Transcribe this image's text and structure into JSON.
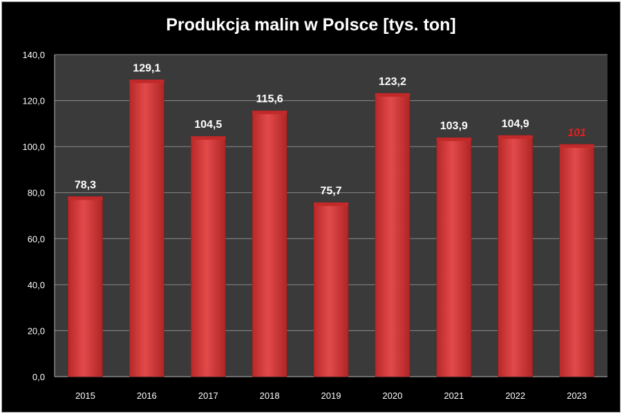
{
  "chart_data": {
    "type": "bar",
    "title": "Produkcja malin w Polsce [tys. ton]",
    "categories": [
      "2015",
      "2016",
      "2017",
      "2018",
      "2019",
      "2020",
      "2021",
      "2022",
      "2023"
    ],
    "values": [
      78.3,
      129.1,
      104.5,
      115.6,
      75.7,
      123.2,
      103.9,
      104.9,
      101
    ],
    "data_labels": [
      "78,3",
      "129,1",
      "104,5",
      "115,6",
      "75,7",
      "123,2",
      "103,9",
      "104,9",
      "101"
    ],
    "highlighted_index": 8,
    "y_ticks": [
      "0,0",
      "20,0",
      "40,0",
      "60,0",
      "80,0",
      "100,0",
      "120,0",
      "140,0"
    ],
    "ylim": [
      0,
      140
    ],
    "grid": true,
    "legend": "none",
    "colors": {
      "background": "#000000",
      "plot_area": "#3a3a3a",
      "bar": "#d93c3c",
      "bar_top": "#c22a2a",
      "gridline": "#8c8c8c",
      "text": "#ffffff",
      "highlight_label": "#e02020"
    }
  }
}
